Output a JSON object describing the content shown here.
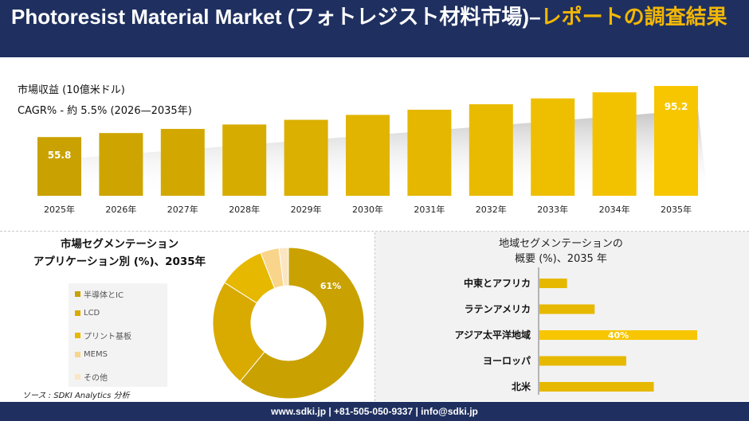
{
  "header": {
    "title_main": "Photoresist Material Market (フォトレジスト材料市場)–",
    "title_accent": "レポートの調査結果"
  },
  "revenue": {
    "label": "市場収益 (10億米ドル)",
    "cagr": "CAGR% - 約 5.5% (2026—2035年)"
  },
  "colors": {
    "navy": "#1f3060",
    "gold_dark": "#c9a100",
    "gold": "#e6b800",
    "gold_mid": "#d9aa00",
    "accent": "#f2b705",
    "yellow": "#f7c600",
    "pale": "#f8d58a",
    "cream": "#fae6c2"
  },
  "chart_data": [
    {
      "type": "bar",
      "categories": [
        "2025年",
        "2026年",
        "2027年",
        "2028年",
        "2029年",
        "2030年",
        "2031年",
        "2032年",
        "2033年",
        "2034年",
        "2035年"
      ],
      "values": [
        55.8,
        58.9,
        62.1,
        65.5,
        69.1,
        72.9,
        76.9,
        81.1,
        85.6,
        90.3,
        95.2
      ],
      "data_labels": [
        "55.8",
        "",
        "",
        "",
        "",
        "",
        "",
        "",
        "",
        "",
        "95.2"
      ]
    },
    {
      "type": "pie",
      "title_line1": "市場セグメンテーション",
      "title_line2": "アプリケーション別 (%)、2035年",
      "labels": [
        "半導体とIC",
        "LCD",
        "プリント基板",
        "MEMS",
        "その他"
      ],
      "values": [
        61,
        23,
        10,
        4,
        2
      ],
      "colors": [
        "#c9a100",
        "#d9aa00",
        "#e6b800",
        "#f8d58a",
        "#fae6c2"
      ],
      "data_labels": [
        "61%",
        "",
        "",
        "",
        ""
      ],
      "legend_position": "left"
    },
    {
      "type": "bar",
      "orientation": "horizontal",
      "title_line1": "地域セグメンテーションの",
      "title_line2": "概要 (%)、2035 年",
      "categories": [
        "中東とアフリカ",
        "ラテンアメリカ",
        "アジア太平洋地域",
        "ヨーロッパ",
        "北米"
      ],
      "values": [
        7,
        14,
        40,
        22,
        29
      ],
      "data_labels": [
        "",
        "",
        "40%",
        "",
        ""
      ]
    }
  ],
  "source": "ソース : SDKI Analytics 分析",
  "footer": "www.sdki.jp | +81-505-050-9337 | info@sdki.jp"
}
